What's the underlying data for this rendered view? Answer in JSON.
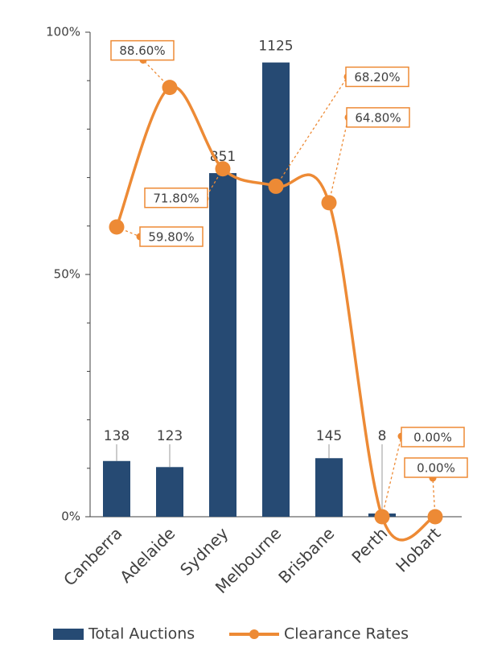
{
  "chart_data": {
    "type": "bar-line",
    "categories": [
      "Canberra",
      "Adelaide",
      "Sydney",
      "Melbourne",
      "Brisbane",
      "Perth",
      "Hobart"
    ],
    "series": [
      {
        "name": "Total Auctions",
        "type": "bar",
        "color": "#264a73",
        "axis": "y2",
        "values": [
          138,
          123,
          851,
          1125,
          145,
          8,
          null
        ]
      },
      {
        "name": "Clearance Rates",
        "type": "line",
        "color": "#ed8a35",
        "values": [
          59.8,
          88.6,
          71.8,
          68.2,
          64.8,
          0,
          0
        ],
        "value_labels": [
          "59.80%",
          "88.60%",
          "71.80%",
          "68.20%",
          "64.80%",
          "0.00%",
          "0.00%"
        ]
      }
    ],
    "ylim": [
      0,
      100
    ],
    "yticks": [
      {
        "value": 0,
        "label": "0%"
      },
      {
        "value": 50,
        "label": "50%"
      },
      {
        "value": 100,
        "label": "100%"
      }
    ],
    "minor_yticks": [
      10,
      20,
      30,
      40,
      60,
      70,
      80,
      90
    ],
    "y2lim": [
      0,
      1200
    ],
    "legend": "bottom"
  }
}
